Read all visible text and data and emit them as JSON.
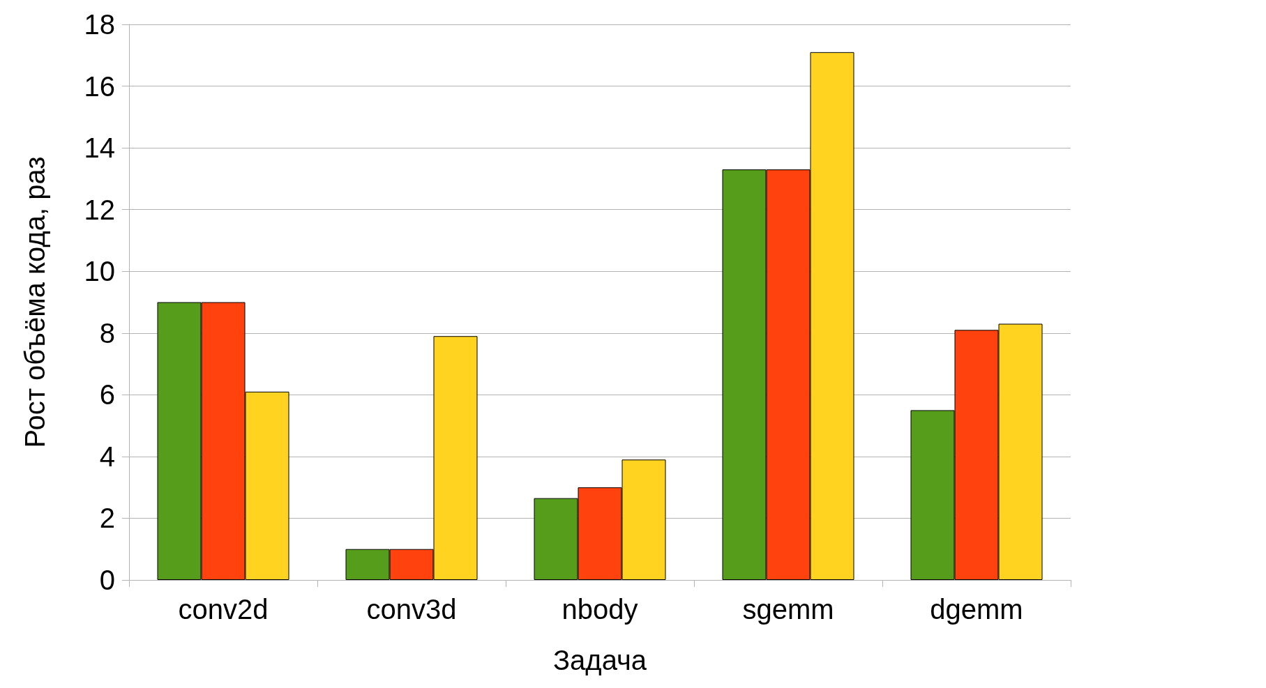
{
  "chart_data": {
    "type": "bar",
    "xlabel": "Задача",
    "ylabel": "Рост объёма кода, раз",
    "categories": [
      "conv2d",
      "conv3d",
      "nbody",
      "sgemm",
      "dgemm"
    ],
    "series": [
      {
        "color": "#579d1c",
        "values": [
          9,
          1,
          2.65,
          13.3,
          5.5
        ]
      },
      {
        "color": "#ff420e",
        "values": [
          9,
          1,
          3,
          13.3,
          8.1
        ]
      },
      {
        "color": "#ffd320",
        "values": [
          6.1,
          7.9,
          3.9,
          17.1,
          8.3
        ]
      }
    ],
    "ylim": [
      0,
      18
    ],
    "yticks": [
      0,
      2,
      4,
      6,
      8,
      10,
      12,
      14,
      16,
      18
    ],
    "grid": "y"
  }
}
